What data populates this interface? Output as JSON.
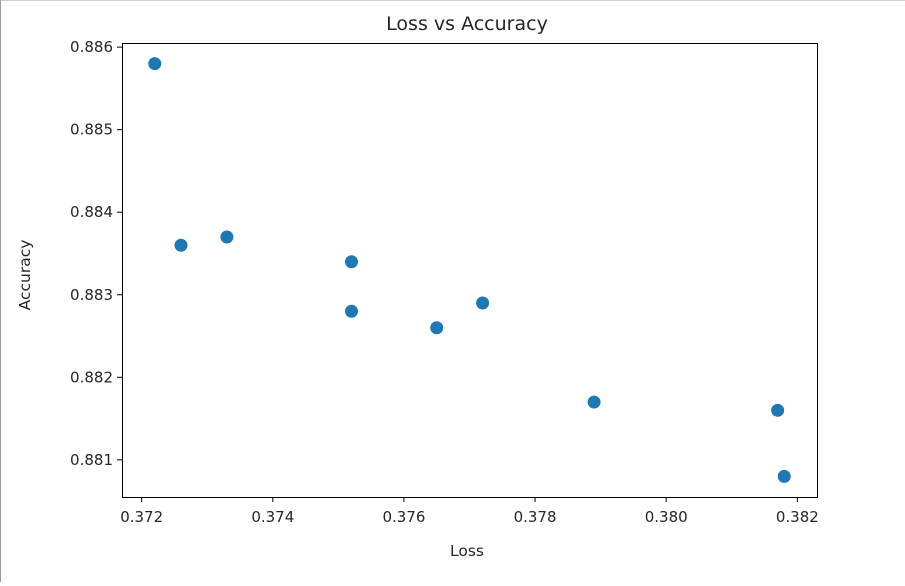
{
  "chart_data": {
    "type": "scatter",
    "title": "Loss vs Accuracy",
    "xlabel": "Loss",
    "ylabel": "Accuracy",
    "xlim": [
      0.3717,
      0.3823
    ],
    "ylim": [
      0.88055,
      0.88605
    ],
    "grid": false,
    "marker_color": "#1f77b4",
    "xticks": [
      0.372,
      0.374,
      0.376,
      0.378,
      0.38,
      0.382
    ],
    "xtick_labels": [
      "0.372",
      "0.374",
      "0.376",
      "0.378",
      "0.380",
      "0.382"
    ],
    "yticks": [
      0.881,
      0.882,
      0.883,
      0.884,
      0.885,
      0.886
    ],
    "ytick_labels": [
      "0.881",
      "0.882",
      "0.883",
      "0.884",
      "0.885",
      "0.886"
    ],
    "points": [
      {
        "x": 0.3722,
        "y": 0.8858
      },
      {
        "x": 0.3726,
        "y": 0.8836
      },
      {
        "x": 0.3733,
        "y": 0.8837
      },
      {
        "x": 0.3752,
        "y": 0.8834
      },
      {
        "x": 0.3752,
        "y": 0.8828
      },
      {
        "x": 0.3765,
        "y": 0.8826
      },
      {
        "x": 0.3772,
        "y": 0.8829
      },
      {
        "x": 0.3789,
        "y": 0.8817
      },
      {
        "x": 0.3817,
        "y": 0.8816
      },
      {
        "x": 0.3818,
        "y": 0.8808
      }
    ]
  }
}
